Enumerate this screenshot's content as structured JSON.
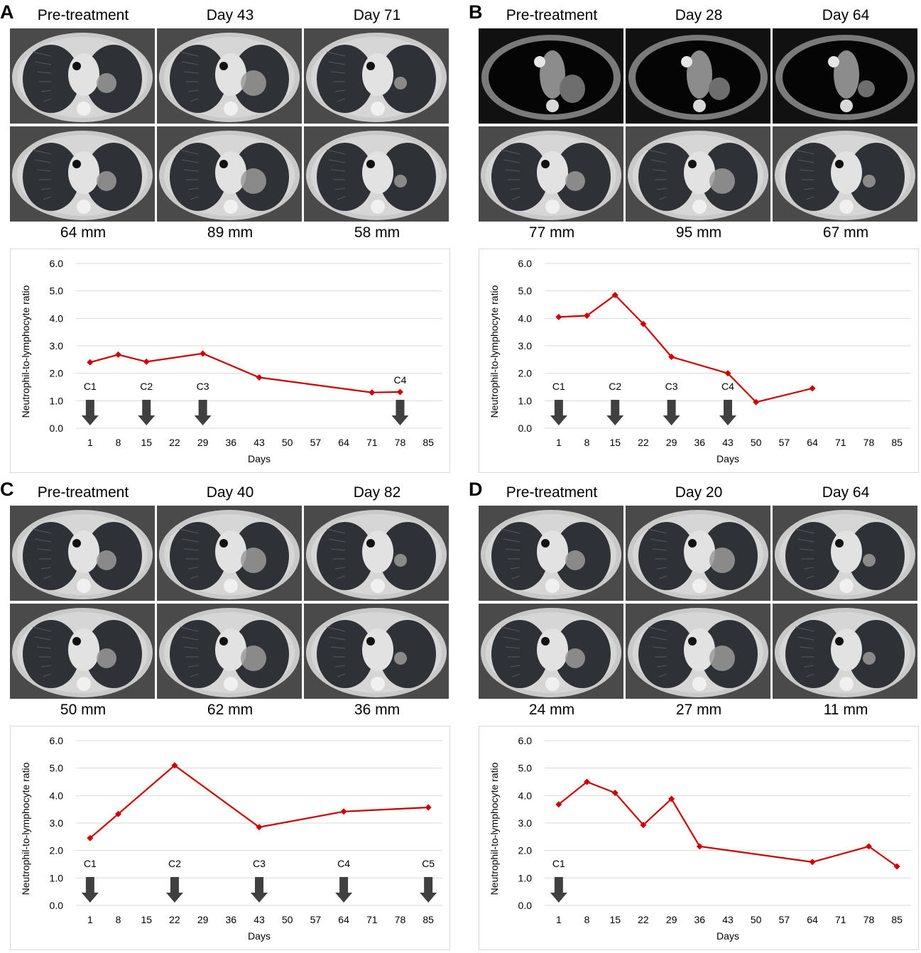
{
  "colors": {
    "series": "#cc0000",
    "grid": "#d9d9d9",
    "arrow": "#404040"
  },
  "panels": [
    {
      "id": "A",
      "timepoints": [
        "Pre-treatment",
        "Day 43",
        "Day 71"
      ],
      "sizes": [
        "64 mm",
        "89 mm",
        "58 mm"
      ],
      "ct_style": "lung",
      "chart_data": {
        "type": "line",
        "xlabel": "Days",
        "ylabel": "Neutrophil-to-lymphocyte ratio",
        "x_ticks": [
          "1",
          "8",
          "15",
          "22",
          "29",
          "36",
          "43",
          "50",
          "57",
          "64",
          "71",
          "78",
          "85"
        ],
        "ylim": [
          0,
          6
        ],
        "y_ticks": [
          "0.0",
          "1.0",
          "2.0",
          "3.0",
          "4.0",
          "5.0",
          "6.0"
        ],
        "grid": true,
        "series": [
          {
            "points": [
              [
                1,
                2.4
              ],
              [
                8,
                2.68
              ],
              [
                15,
                2.42
              ],
              [
                29,
                2.72
              ],
              [
                43,
                1.85
              ],
              [
                71,
                1.3
              ],
              [
                78,
                1.32
              ]
            ]
          }
        ],
        "cycles": [
          {
            "label": "C1",
            "day": 1
          },
          {
            "label": "C2",
            "day": 15
          },
          {
            "label": "C3",
            "day": 29
          },
          {
            "label": "C4",
            "day": 78,
            "label_above": true
          }
        ]
      }
    },
    {
      "id": "B",
      "timepoints": [
        "Pre-treatment",
        "Day 28",
        "Day 64"
      ],
      "sizes": [
        "77 mm",
        "95 mm",
        "67 mm"
      ],
      "ct_style": "mediastinal-top",
      "chart_data": {
        "type": "line",
        "xlabel": "Days",
        "ylabel": "Neutrophil-to-lymphocyte ratio",
        "x_ticks": [
          "1",
          "8",
          "15",
          "22",
          "29",
          "36",
          "43",
          "50",
          "57",
          "64",
          "71",
          "78",
          "85"
        ],
        "ylim": [
          0,
          6
        ],
        "y_ticks": [
          "0.0",
          "1.0",
          "2.0",
          "3.0",
          "4.0",
          "5.0",
          "6.0"
        ],
        "grid": true,
        "series": [
          {
            "points": [
              [
                1,
                4.05
              ],
              [
                8,
                4.1
              ],
              [
                15,
                4.85
              ],
              [
                22,
                3.8
              ],
              [
                29,
                2.6
              ],
              [
                43,
                2.0
              ],
              [
                50,
                0.95
              ],
              [
                64,
                1.45
              ]
            ]
          }
        ],
        "cycles": [
          {
            "label": "C1",
            "day": 1
          },
          {
            "label": "C2",
            "day": 15
          },
          {
            "label": "C3",
            "day": 29
          },
          {
            "label": "C4",
            "day": 43
          }
        ]
      }
    },
    {
      "id": "C",
      "timepoints": [
        "Pre-treatment",
        "Day 40",
        "Day 82"
      ],
      "sizes": [
        "50 mm",
        "62 mm",
        "36 mm"
      ],
      "ct_style": "lung",
      "chart_data": {
        "type": "line",
        "xlabel": "Days",
        "ylabel": "Neutrophil-to-lymphocyte ratio",
        "x_ticks": [
          "1",
          "8",
          "15",
          "22",
          "29",
          "36",
          "43",
          "50",
          "57",
          "64",
          "71",
          "78",
          "85"
        ],
        "ylim": [
          0,
          6
        ],
        "y_ticks": [
          "0.0",
          "1.0",
          "2.0",
          "3.0",
          "4.0",
          "5.0",
          "6.0"
        ],
        "grid": true,
        "series": [
          {
            "points": [
              [
                1,
                2.45
              ],
              [
                8,
                3.33
              ],
              [
                22,
                5.1
              ],
              [
                43,
                2.85
              ],
              [
                64,
                3.42
              ],
              [
                85,
                3.57
              ]
            ]
          }
        ],
        "cycles": [
          {
            "label": "C1",
            "day": 1
          },
          {
            "label": "C2",
            "day": 22
          },
          {
            "label": "C3",
            "day": 43
          },
          {
            "label": "C4",
            "day": 64
          },
          {
            "label": "C5",
            "day": 85
          }
        ]
      }
    },
    {
      "id": "D",
      "timepoints": [
        "Pre-treatment",
        "Day 20",
        "Day 64"
      ],
      "sizes": [
        "24 mm",
        "27 mm",
        "11 mm"
      ],
      "ct_style": "lung",
      "chart_data": {
        "type": "line",
        "xlabel": "Days",
        "ylabel": "Neutrophil-to-lymphocyte ratio",
        "x_ticks": [
          "1",
          "8",
          "15",
          "22",
          "29",
          "36",
          "43",
          "50",
          "57",
          "64",
          "71",
          "78",
          "85"
        ],
        "ylim": [
          0,
          6
        ],
        "y_ticks": [
          "0.0",
          "1.0",
          "2.0",
          "3.0",
          "4.0",
          "5.0",
          "6.0"
        ],
        "grid": true,
        "series": [
          {
            "points": [
              [
                1,
                3.68
              ],
              [
                8,
                4.5
              ],
              [
                15,
                4.1
              ],
              [
                22,
                2.93
              ],
              [
                29,
                3.88
              ],
              [
                36,
                2.15
              ],
              [
                64,
                1.58
              ],
              [
                78,
                2.15
              ],
              [
                85,
                1.42
              ]
            ]
          }
        ],
        "cycles": [
          {
            "label": "C1",
            "day": 1
          }
        ]
      }
    }
  ]
}
